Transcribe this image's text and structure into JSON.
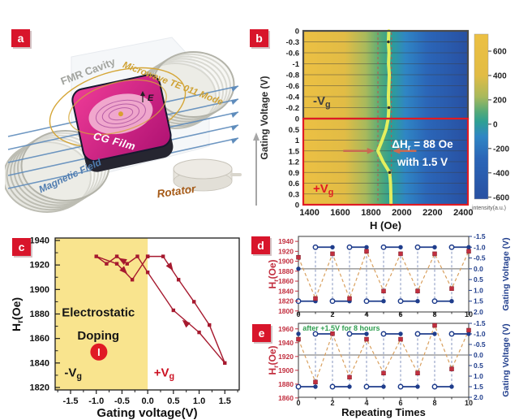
{
  "panel_labels": [
    {
      "id": "a",
      "label": "a"
    },
    {
      "id": "b",
      "label": "b"
    },
    {
      "id": "c",
      "label": "c"
    },
    {
      "id": "d",
      "label": "d"
    },
    {
      "id": "e",
      "label": "e"
    }
  ],
  "label_box_color": "#d8152b",
  "panel_a": {
    "labels": {
      "cavity": "FMR Cavity",
      "microwave": "Microwave TE 011 Mode",
      "field": "Magnetic Field",
      "film": "CG Film",
      "efield": "E",
      "rotator": "Rotator"
    }
  },
  "chart_data": [
    {
      "panel": "b",
      "type": "heatmap",
      "xlabel": "H (Oe)",
      "ylabel": "Gating Voltage (V)",
      "x_ticks": [
        1400,
        1600,
        1800,
        2000,
        2200,
        2400
      ],
      "x_range": [
        1360,
        2430
      ],
      "gv_ticks": [
        "0",
        "-0.3",
        "-0.6",
        "-1",
        "-0.8",
        "-0.6",
        "-0.4",
        "-0.2",
        "0",
        "0.5",
        "1",
        "1.5",
        "1.2",
        "0.9",
        "0.6",
        "0.3",
        "0"
      ],
      "resonance_h": [
        1916,
        1913,
        1917,
        1914,
        1919,
        1916,
        1913,
        1916,
        1912,
        1898,
        1873,
        1845,
        1878,
        1921,
        1927,
        1929,
        1930
      ],
      "marker_rows": [
        1,
        7,
        13
      ],
      "dashed_h": [
        1845,
        1933
      ],
      "region_labels": {
        "neg": {
          "text": "-V",
          "sub": "g"
        },
        "pos": {
          "text": "+V",
          "sub": "g"
        }
      },
      "annotation": {
        "line1_pre": "ΔH",
        "line1_sub": "r",
        "line1_post": " = 88 Oe",
        "line2": "with 1.5 V"
      },
      "colorbar": {
        "ticks": [
          600,
          400,
          200,
          0,
          -200,
          -400,
          -600
        ],
        "range": [
          740,
          -615
        ],
        "label": "intensity(a.u.)"
      },
      "colors": {
        "border_neg": "#4a4a4a",
        "border_pos": "#e01b24",
        "line": "#ecf25c",
        "dashed": "#cc4848",
        "arrow": "#c96a52",
        "gradient": [
          "#ecc043",
          "#e2bc45",
          "#a8b95c",
          "#55aa78",
          "#2ea093",
          "#2f86c4",
          "#2b66b8",
          "#2850a2"
        ],
        "gradient_pos": [
          0,
          0.25,
          0.38,
          0.47,
          0.53,
          0.62,
          0.75,
          1
        ]
      }
    },
    {
      "panel": "c",
      "type": "line",
      "xlabel": "Gating voltage(V)",
      "ylabel_pre": "H",
      "ylabel_sub": "r",
      "ylabel_post": "(Oe)",
      "x_ticks": [
        "-1.5",
        "-1.0",
        "-0.5",
        "0.0",
        "0.5",
        "1.0",
        "1.5"
      ],
      "y_ticks": [
        1820,
        1840,
        1860,
        1880,
        1900,
        1920,
        1940
      ],
      "x_range": [
        -1.8,
        1.78
      ],
      "y_range": [
        1818,
        1942
      ],
      "points": [
        [
          0,
          1927
        ],
        [
          0.3,
          1927
        ],
        [
          0.6,
          1908
        ],
        [
          0.9,
          1890
        ],
        [
          1.2,
          1871
        ],
        [
          1.5,
          1840
        ],
        [
          1.0,
          1865
        ],
        [
          0.5,
          1883
        ],
        [
          0,
          1914
        ],
        [
          -0.2,
          1927
        ],
        [
          -0.4,
          1921
        ],
        [
          -0.6,
          1927
        ],
        [
          -0.8,
          1921
        ],
        [
          -1.0,
          1927
        ],
        [
          -0.6,
          1921
        ],
        [
          -0.3,
          1908
        ],
        [
          0,
          1927
        ]
      ],
      "arrows": [
        {
          "x": 0.45,
          "y": 1918,
          "angle": 55
        },
        {
          "x": 0.73,
          "y": 1873,
          "angle": 222
        },
        {
          "x": -0.5,
          "y": 1924,
          "angle": 210
        },
        {
          "x": -0.45,
          "y": 1915,
          "angle": 46
        }
      ],
      "texts": {
        "region_title1": "Electrostatic",
        "region_title2": "Doping",
        "circle_label": "I",
        "neg": {
          "text": "-V",
          "sub": "g"
        },
        "pos": {
          "text": "+V",
          "sub": "g"
        }
      },
      "colors": {
        "line": "#a6192e",
        "shade": "#f9e48e",
        "circle": "#e01b24"
      }
    },
    {
      "panel": "d",
      "type": "line",
      "ylabel_left": {
        "pre": "H",
        "sub": "r",
        "post": "(Oe)"
      },
      "ylabel_right": "Gating Voltage (V)",
      "x_ticks": [
        0,
        2,
        4,
        6,
        8,
        10
      ],
      "hr_ticks": [
        1940,
        1920,
        1900,
        1880,
        1860,
        1840,
        1820,
        1800
      ],
      "hr_range": [
        1798,
        1950
      ],
      "gv_ticks": [
        "-1.5",
        "-1.0",
        "-0.5",
        "0.0",
        "0.5",
        "1.0",
        "1.5",
        "2.0"
      ],
      "gv_range": [
        -1.5,
        2.0
      ],
      "hr_values": [
        1908,
        1825,
        1915,
        1825,
        1920,
        1840,
        1915,
        1840,
        1915,
        1845,
        1920
      ],
      "gv_wave": {
        "high": -1.0,
        "low": 1.5,
        "high_intervals": [
          [
            1,
            2
          ],
          [
            3,
            4
          ],
          [
            5,
            6
          ],
          [
            7,
            8
          ],
          [
            9,
            10
          ]
        ],
        "low_intervals": [
          [
            0,
            1
          ],
          [
            2,
            3
          ],
          [
            4,
            5
          ],
          [
            6,
            7
          ],
          [
            8,
            9
          ]
        ],
        "start_dot_gv": 0.0
      },
      "colors": {
        "hr": "#c22f3f",
        "gv": "#1f3d8c",
        "connector": "#d9a05e",
        "zero_line": "#8a8a8a"
      }
    },
    {
      "panel": "e",
      "type": "line",
      "xlabel": "Repeating Times",
      "annotation": "after +1.5V for 8 hours",
      "ylabel_left": {
        "pre": "H",
        "sub": "r",
        "post": "(Oe)"
      },
      "ylabel_right": "Gating Voltage (V)",
      "x_ticks": [
        0,
        2,
        4,
        6,
        8,
        10
      ],
      "hr_ticks": [
        1960,
        1940,
        1920,
        1900,
        1880,
        1860
      ],
      "hr_range": [
        1861,
        1968
      ],
      "gv_ticks": [
        "-1.5",
        "-1.0",
        "-0.5",
        "0.0",
        "0.5",
        "1.0",
        "1.5",
        "2.0"
      ],
      "gv_range": [
        -1.5,
        2.0
      ],
      "hr_values": [
        1945,
        1883,
        1953,
        1890,
        1945,
        1896,
        1945,
        1896,
        1965,
        1902,
        1958
      ],
      "gv_wave": {
        "high": -1.0,
        "low": 1.5,
        "high_intervals": [
          [
            1,
            2
          ],
          [
            3,
            4
          ],
          [
            5,
            6
          ],
          [
            7,
            8
          ],
          [
            9,
            10
          ]
        ],
        "low_intervals": [
          [
            0,
            1
          ],
          [
            2,
            3
          ],
          [
            4,
            5
          ],
          [
            6,
            7
          ],
          [
            8,
            9
          ]
        ],
        "start_dot_gv": -1.0
      },
      "colors": {
        "hr": "#c22f3f",
        "gv": "#1f3d8c",
        "connector": "#d9a05e",
        "zero_line": "#8a8a8a"
      }
    }
  ]
}
